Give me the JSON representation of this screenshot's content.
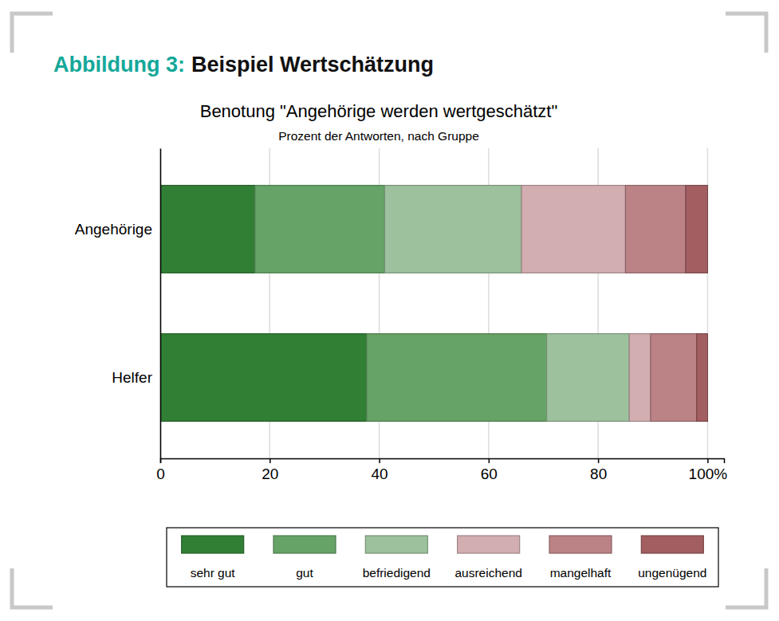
{
  "header": {
    "label": "Abbildung 3:",
    "title": "Beispiel Wertschätzung"
  },
  "chart_data": {
    "type": "bar",
    "orientation": "horizontal",
    "stacked": true,
    "title": "Benotung \"Angehörige werden wertgeschätzt\"",
    "subtitle": "Prozent der Antworten, nach Gruppe",
    "categories": [
      "Angehörige",
      "Helfer"
    ],
    "series": [
      {
        "name": "sehr gut",
        "color": "#317f35",
        "values": [
          17.3,
          37.7
        ]
      },
      {
        "name": "gut",
        "color": "#66a366",
        "values": [
          23.7,
          32.9
        ]
      },
      {
        "name": "befriedigend",
        "color": "#9dc19d",
        "values": [
          25.0,
          15.1
        ]
      },
      {
        "name": "ausreichend",
        "color": "#d2aeb1",
        "values": [
          19.0,
          3.9
        ]
      },
      {
        "name": "mangelhaft",
        "color": "#bb8386",
        "values": [
          11.0,
          8.4
        ]
      },
      {
        "name": "ungenügend",
        "color": "#a35e61",
        "values": [
          4.0,
          2.0
        ]
      }
    ],
    "xlim": [
      0,
      103
    ],
    "xticks": [
      0,
      20,
      40,
      60,
      80,
      {
        "value": 100,
        "label": "100%"
      }
    ],
    "grid": true,
    "legend": "bottom"
  }
}
